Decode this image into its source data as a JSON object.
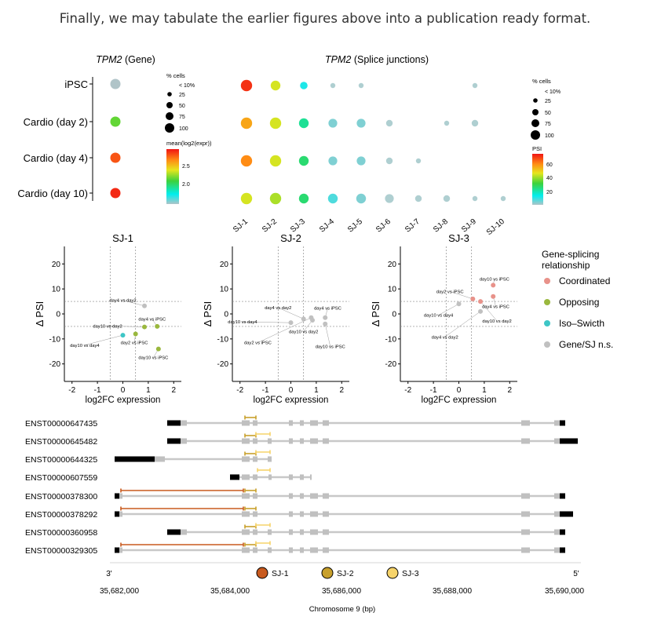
{
  "caption": "Finally, we may tabulate the earlier figures above into a publication ready format.",
  "gene_panel": {
    "title_gene": "TPM2",
    "title_suffix": " (Gene)",
    "rows": [
      "iPSC",
      "Cardio (day 2)",
      "Cardio (day 4)",
      "Cardio (day 10)"
    ],
    "pct_cells": [
      5,
      50,
      50,
      50
    ],
    "mean_expr": [
      1.5,
      2.35,
      2.95,
      3.05
    ],
    "size_legend_title": "% cells",
    "size_legend_labels": [
      "< 10%",
      "25",
      "50",
      "75",
      "100"
    ],
    "color_legend_title": "mean(log2(expr))",
    "color_legend_ticks": [
      "2.5",
      "2.0"
    ],
    "color_range": [
      1.7,
      3.1
    ]
  },
  "sj_panel": {
    "title_gene": "TPM2",
    "title_suffix": " (Splice junctions)",
    "columns": [
      "SJ-1",
      "SJ-2",
      "SJ-3",
      "SJ-4",
      "SJ-5",
      "SJ-6",
      "SJ-7",
      "SJ-8",
      "SJ-9",
      "SJ-10"
    ],
    "pct_cells": [
      [
        50,
        40,
        25,
        8,
        8,
        null,
        null,
        null,
        8,
        null
      ],
      [
        50,
        50,
        45,
        30,
        30,
        15,
        null,
        8,
        15,
        null
      ],
      [
        50,
        50,
        45,
        30,
        30,
        15,
        8,
        null,
        null,
        null
      ],
      [
        50,
        50,
        45,
        45,
        45,
        30,
        15,
        15,
        8,
        8
      ]
    ],
    "psi": [
      [
        95,
        60,
        15,
        0,
        0,
        null,
        null,
        null,
        0,
        null
      ],
      [
        75,
        60,
        30,
        5,
        5,
        0,
        null,
        0,
        0,
        null
      ],
      [
        80,
        60,
        35,
        5,
        5,
        0,
        0,
        null,
        null,
        null
      ],
      [
        60,
        55,
        35,
        10,
        5,
        0,
        0,
        0,
        0,
        0
      ]
    ],
    "size_legend_title": "% cells",
    "size_legend_labels": [
      "< 10%",
      "25",
      "50",
      "75",
      "100"
    ],
    "color_legend_title": "PSI",
    "color_legend_ticks": [
      "60",
      "40",
      "20"
    ],
    "color_range": [
      0,
      100
    ]
  },
  "chart_data": {
    "type": "scatter",
    "xlabel": "log2FC expression",
    "ylabel": "Δ PSI",
    "xlim": [
      -2.3,
      2.3
    ],
    "ylim": [
      -27,
      27
    ],
    "xticks": [
      "-2",
      "-1",
      "0",
      "1",
      "2"
    ],
    "yticks": [
      "20",
      "10",
      "0",
      "-10",
      "-20"
    ],
    "thresholds": {
      "x": [
        -0.5,
        0.5
      ],
      "y": [
        -5,
        5
      ]
    },
    "panels": [
      {
        "title": "SJ-1",
        "points": [
          {
            "label": "day4 vs day2",
            "x": 0.85,
            "y": 3.2,
            "cat": "ns",
            "lx": 0.0,
            "ly": 5.5
          },
          {
            "label": "day4 vs iPSC",
            "x": 1.35,
            "y": -5.0,
            "cat": "opp",
            "lx": 1.15,
            "ly": -2.0
          },
          {
            "label": "day10 vs day2",
            "x": 0.85,
            "y": -5.2,
            "cat": "opp",
            "lx": -0.6,
            "ly": -4.8
          },
          {
            "label": "day2 vs iPSC",
            "x": 0.5,
            "y": -8.0,
            "cat": "opp",
            "lx": 0.45,
            "ly": -11.5
          },
          {
            "label": "day10 vs day4",
            "x": 0.0,
            "y": -8.5,
            "cat": "iso",
            "lx": -1.5,
            "ly": -12.5
          },
          {
            "label": "day10 vs iPSC",
            "x": 1.4,
            "y": -14.0,
            "cat": "opp",
            "lx": 1.2,
            "ly": -17.5
          }
        ]
      },
      {
        "title": "SJ-2",
        "points": [
          {
            "label": "day4 vs day2",
            "x": 0.5,
            "y": -2.0,
            "cat": "ns",
            "lx": -0.5,
            "ly": 2.5
          },
          {
            "label": "day4 vs iPSC",
            "x": 1.35,
            "y": -1.5,
            "cat": "ns",
            "lx": 1.45,
            "ly": 2.3
          },
          {
            "label": "day10 vs day4",
            "x": 0.0,
            "y": -3.5,
            "cat": "ns",
            "lx": -1.9,
            "ly": -3.2
          },
          {
            "label": "day10 vs day2",
            "x": 0.85,
            "y": -2.5,
            "cat": "ns",
            "lx": 0.5,
            "ly": -7.0
          },
          {
            "label": "day2 vs iPSC",
            "x": 0.8,
            "y": -1.5,
            "cat": "ns",
            "lx": -1.3,
            "ly": -11.5
          },
          {
            "label": "day10 vs iPSC",
            "x": 1.35,
            "y": -4.0,
            "cat": "ns",
            "lx": 1.55,
            "ly": -13.0
          }
        ]
      },
      {
        "title": "SJ-3",
        "points": [
          {
            "label": "day10 vs iPSC",
            "x": 1.35,
            "y": 11.5,
            "cat": "coord",
            "lx": 1.4,
            "ly": 14.0
          },
          {
            "label": "day2 vs iPSC",
            "x": 0.55,
            "y": 6.0,
            "cat": "coord",
            "lx": -0.35,
            "ly": 9.0
          },
          {
            "label": "day10 vs day2",
            "x": 0.85,
            "y": 5.0,
            "cat": "coord",
            "lx": 1.5,
            "ly": -2.8
          },
          {
            "label": "day4 vs iPSC",
            "x": 1.35,
            "y": 7.0,
            "cat": "coord",
            "lx": 1.45,
            "ly": 3.0
          },
          {
            "label": "day10 vs day4",
            "x": 0.0,
            "y": 4.0,
            "cat": "ns",
            "lx": -0.8,
            "ly": -0.5
          },
          {
            "label": "day4 vs day2",
            "x": 0.85,
            "y": 1.0,
            "cat": "ns",
            "lx": -0.55,
            "ly": -9.2
          }
        ]
      }
    ],
    "legend": {
      "title_line1": "Gene-splicing",
      "title_line2": "relationship",
      "items": [
        {
          "key": "coord",
          "label": "Coordinated",
          "color": "#e8928a"
        },
        {
          "key": "opp",
          "label": "Opposing",
          "color": "#9ab83e"
        },
        {
          "key": "iso",
          "label": "Iso–Swicth",
          "color": "#3ec6c6"
        },
        {
          "key": "ns",
          "label": "Gene/SJ n.s.",
          "color": "#c0c0c0"
        }
      ]
    }
  },
  "transcripts": {
    "names": [
      "ENST00000647435",
      "ENST00000645482",
      "ENST00000644325",
      "ENST00000607559",
      "ENST00000378300",
      "ENST00000378292",
      "ENST00000360958",
      "ENST00000329305"
    ],
    "xlabel": "Chromosome 9 (bp)",
    "ticks": [
      "35,682,000",
      "35,684,000",
      "35,686,000",
      "35,688,000",
      "35,690,000"
    ],
    "tick_values": [
      35682000,
      35684000,
      35686000,
      35688000,
      35690000
    ],
    "end_left": "3'",
    "end_right": "5'",
    "sj_legend": [
      {
        "label": "SJ-1",
        "color": "#c85a1e"
      },
      {
        "label": "SJ-2",
        "color": "#c8a02c"
      },
      {
        "label": "SJ-3",
        "color": "#f6d36a"
      }
    ]
  }
}
